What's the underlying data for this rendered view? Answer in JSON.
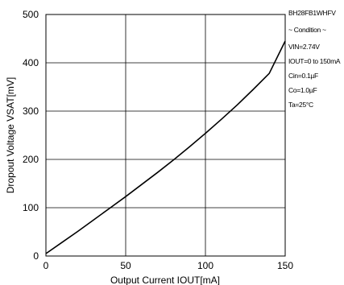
{
  "chart_data": {
    "type": "line",
    "title": "",
    "xlabel": "Output Current IOUT[mA]",
    "ylabel": "Dropout Voltage VSAT[mV]",
    "xlim": [
      0,
      150
    ],
    "ylim": [
      0,
      500
    ],
    "xticks": [
      0,
      50,
      100,
      150
    ],
    "yticks": [
      0,
      100,
      200,
      300,
      400,
      500
    ],
    "grid": true,
    "series": [
      {
        "x": [
          0,
          10,
          20,
          30,
          40,
          50,
          60,
          70,
          80,
          90,
          100,
          110,
          120,
          130,
          140,
          150
        ],
        "y": [
          5,
          28,
          51,
          75,
          99,
          123,
          148,
          173,
          199,
          226,
          254,
          283,
          313,
          345,
          378,
          445
        ]
      }
    ]
  },
  "conditions": {
    "part": "BH28FB1WHFV",
    "heading": "~ Condition ~",
    "lines": [
      "VIN=2.74V",
      "IOUT=0 to 150mA",
      "Cin=0.1µF",
      "Co=1.0µF",
      "Ta=25°C"
    ]
  }
}
